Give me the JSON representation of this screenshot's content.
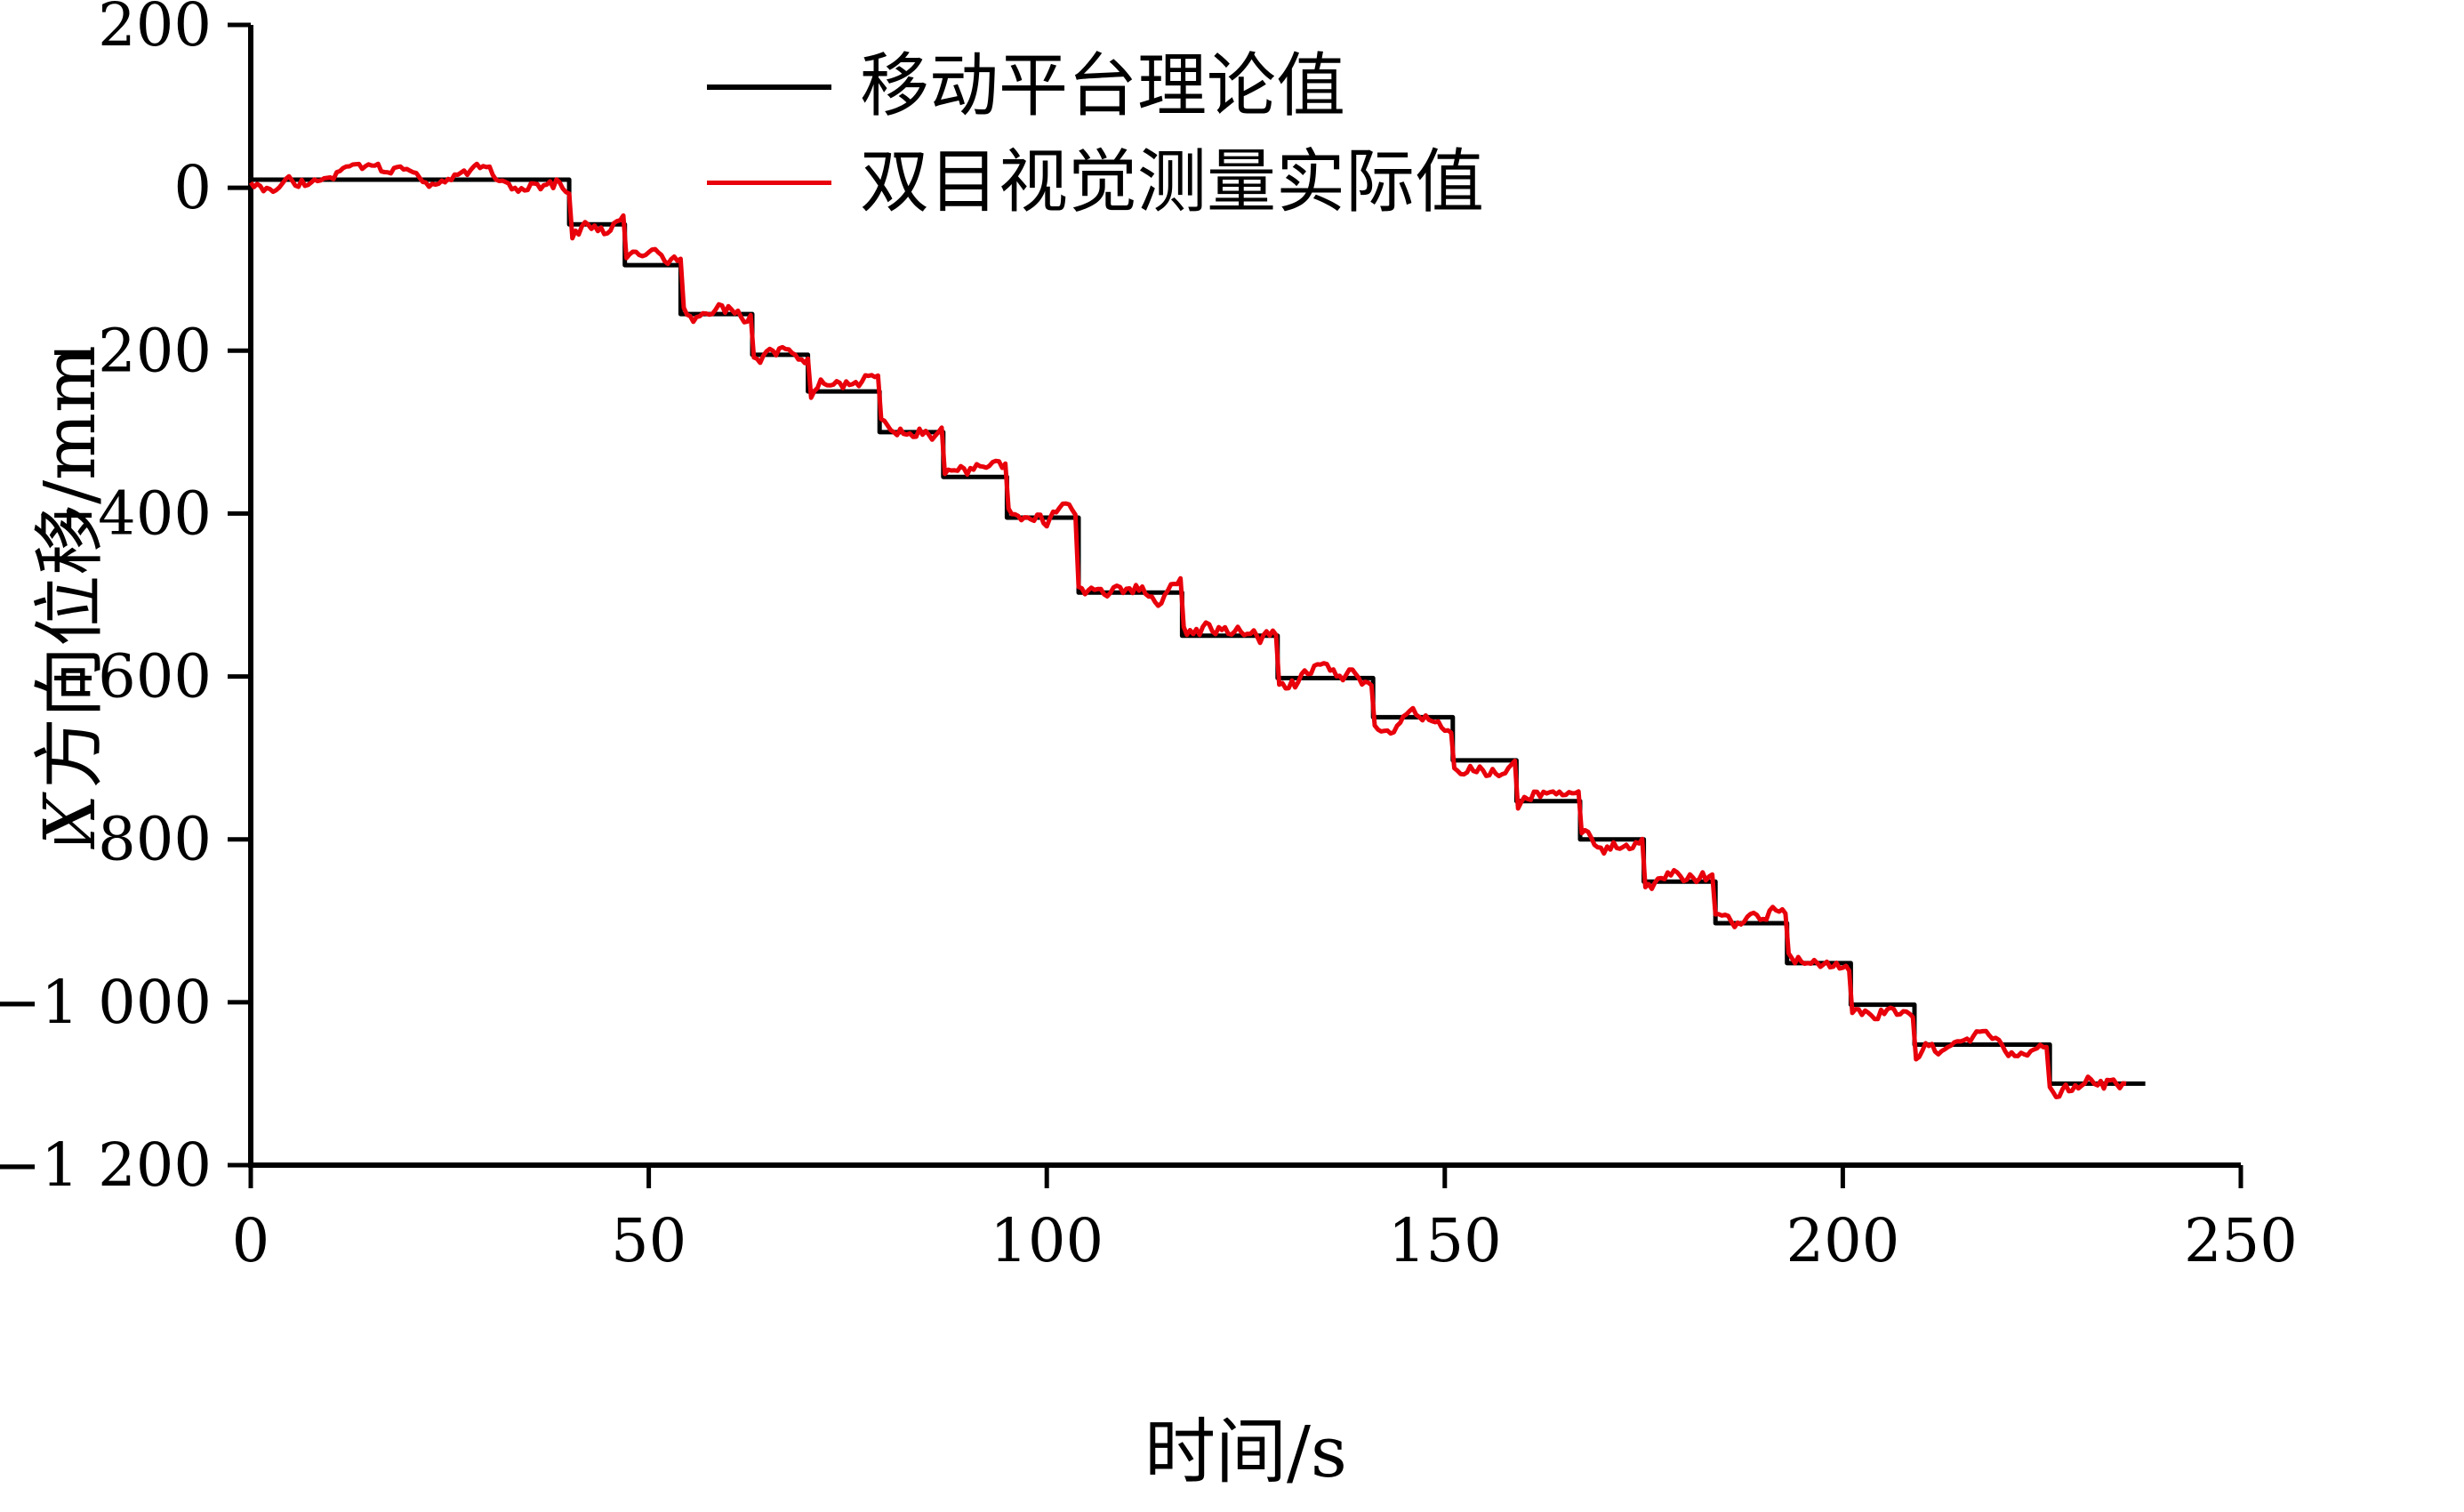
{
  "chart_data": {
    "type": "line",
    "title": "",
    "xlabel": "时间/s",
    "ylabel": "X方向位移/mm",
    "ylabel_parts": {
      "italic": "X",
      "rest": "方向位移/mm"
    },
    "xlim": [
      0,
      250
    ],
    "ylim": [
      -1200,
      200
    ],
    "grid": false,
    "legend_position": "top-inside",
    "x_ticks": {
      "values": [
        0,
        50,
        100,
        150,
        200,
        250
      ],
      "labels": [
        "0",
        "50",
        "100",
        "150",
        "200",
        "250"
      ]
    },
    "y_ticks": {
      "values": [
        200,
        0,
        -200,
        -400,
        -600,
        -800,
        -1000,
        -1200
      ],
      "labels": [
        "200",
        "0",
        "−200",
        "−400",
        "−600",
        "−800",
        "−1 000",
        "−1 200"
      ]
    },
    "series": [
      {
        "name": "移动平台理论值",
        "color": "#000000",
        "style": "step",
        "steps": [
          [
            0,
            10
          ],
          [
            40,
            -45
          ],
          [
            47,
            -95
          ],
          [
            54,
            -155
          ],
          [
            63,
            -205
          ],
          [
            70,
            -250
          ],
          [
            79,
            -300
          ],
          [
            87,
            -355
          ],
          [
            95,
            -405
          ],
          [
            104,
            -497
          ],
          [
            117,
            -550
          ],
          [
            129,
            -602
          ],
          [
            141,
            -650
          ],
          [
            151,
            -703
          ],
          [
            159,
            -753
          ],
          [
            167,
            -800
          ],
          [
            175,
            -852
          ],
          [
            184,
            -903
          ],
          [
            193,
            -952
          ],
          [
            201,
            -1003
          ],
          [
            209,
            -1052
          ],
          [
            226,
            -1100
          ]
        ],
        "end_time": 238
      },
      {
        "name": "双目视觉测量实际值",
        "color": "#e8000b",
        "style": "noisy-step-follow",
        "end_time": 236,
        "noise": {
          "seed": 9,
          "amplitude_mm": 18,
          "sample_interval_s": 0.4
        }
      }
    ]
  }
}
